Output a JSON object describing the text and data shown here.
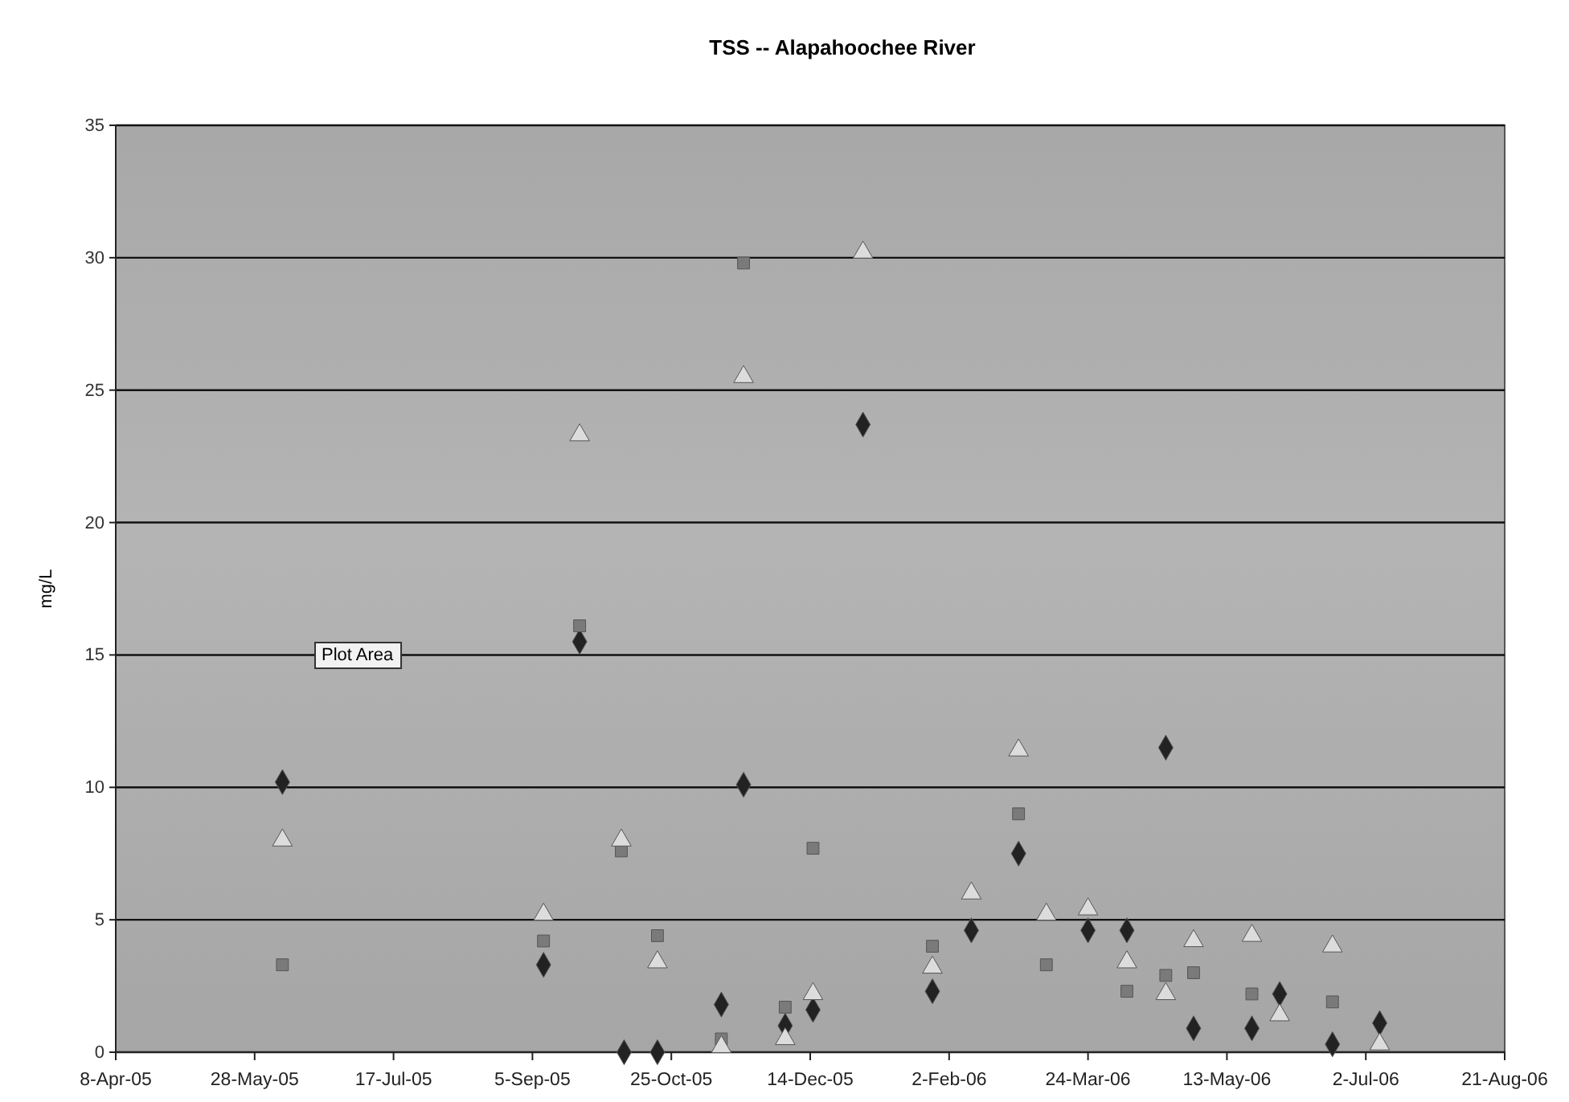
{
  "chart_data": {
    "type": "scatter",
    "title": "TSS -- Alapahoochee River",
    "ylabel": "mg/L",
    "xlim": [
      "2005-04-08",
      "2006-08-21"
    ],
    "xticks": [
      {
        "value": "2005-04-08",
        "label": "8-Apr-05"
      },
      {
        "value": "2005-05-28",
        "label": "28-May-05"
      },
      {
        "value": "2005-07-17",
        "label": "17-Jul-05"
      },
      {
        "value": "2005-09-05",
        "label": "5-Sep-05"
      },
      {
        "value": "2005-10-25",
        "label": "25-Oct-05"
      },
      {
        "value": "2005-12-14",
        "label": "14-Dec-05"
      },
      {
        "value": "2006-02-02",
        "label": "2-Feb-06"
      },
      {
        "value": "2006-03-24",
        "label": "24-Mar-06"
      },
      {
        "value": "2006-05-13",
        "label": "13-May-06"
      },
      {
        "value": "2006-07-02",
        "label": "2-Jul-06"
      },
      {
        "value": "2006-08-21",
        "label": "21-Aug-06"
      }
    ],
    "ylim": [
      0,
      35
    ],
    "yticks": [
      0,
      5,
      10,
      15,
      20,
      25,
      30,
      35
    ],
    "grid": "y",
    "annotations": [
      "Plot Area"
    ],
    "series": [
      {
        "color": "#222222",
        "marker": "diamond",
        "x": [
          "2005-06-07",
          "2005-09-09",
          "2005-09-22",
          "2005-10-08",
          "2005-10-20",
          "2005-11-12",
          "2005-11-20",
          "2005-12-05",
          "2005-12-15",
          "2006-01-02",
          "2006-01-27",
          "2006-02-10",
          "2006-02-27",
          "2006-03-24",
          "2006-04-07",
          "2006-04-21",
          "2006-05-01",
          "2006-05-22",
          "2006-06-01",
          "2006-06-20",
          "2006-07-07"
        ],
        "values": [
          10.2,
          3.3,
          15.5,
          0,
          0,
          1.8,
          10.1,
          1.0,
          1.6,
          23.7,
          2.3,
          4.6,
          7.5,
          4.6,
          4.6,
          11.5,
          0.9,
          0.9,
          2.2,
          0.3,
          1.1
        ]
      },
      {
        "color": "#7a7a7a",
        "marker": "square",
        "x": [
          "2005-06-07",
          "2005-09-09",
          "2005-09-22",
          "2005-10-07",
          "2005-10-20",
          "2005-11-12",
          "2005-11-20",
          "2005-12-05",
          "2005-12-15",
          "2006-01-02",
          "2006-01-27",
          "2006-02-27",
          "2006-03-09",
          "2006-03-24",
          "2006-04-07",
          "2006-04-21",
          "2006-05-01",
          "2006-05-22",
          "2006-06-20"
        ],
        "values": [
          3.3,
          4.2,
          16.1,
          7.6,
          4.4,
          0.5,
          29.8,
          1.7,
          7.7,
          null,
          4.0,
          9.0,
          3.3,
          null,
          2.3,
          2.9,
          3.0,
          2.2,
          1.9
        ]
      },
      {
        "color": "#dcdcdc",
        "marker": "triangle",
        "x": [
          "2005-06-07",
          "2005-09-09",
          "2005-09-22",
          "2005-10-07",
          "2005-10-20",
          "2005-11-12",
          "2005-11-20",
          "2005-12-05",
          "2005-12-15",
          "2006-01-02",
          "2006-01-27",
          "2006-02-10",
          "2006-02-27",
          "2006-03-09",
          "2006-03-24",
          "2006-04-07",
          "2006-04-21",
          "2006-05-01",
          "2006-05-22",
          "2006-06-01",
          "2006-06-20",
          "2006-07-07"
        ],
        "values": [
          8.0,
          5.2,
          23.3,
          8.0,
          3.4,
          0.2,
          25.5,
          0.5,
          2.2,
          30.2,
          3.2,
          6.0,
          11.4,
          5.2,
          5.4,
          3.4,
          2.2,
          4.2,
          4.4,
          1.4,
          4.0,
          0.3
        ]
      }
    ]
  }
}
